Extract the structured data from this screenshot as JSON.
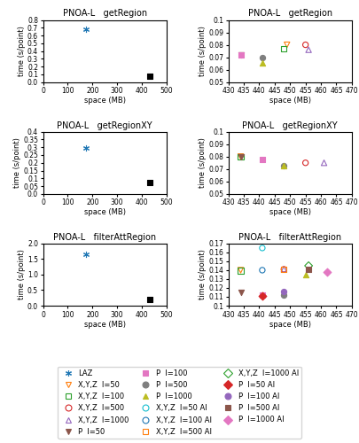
{
  "chart_data": [
    {
      "type": "scatter",
      "title": "PNOA-L   getRegion",
      "x_label": "space (MB)",
      "y_label": "time (s/point)",
      "xlim": [
        0,
        500
      ],
      "ylim": [
        0,
        0.8
      ],
      "xticks": [
        0,
        100,
        200,
        300,
        400,
        500
      ],
      "yticks": [
        0.0,
        0.1,
        0.2,
        0.3,
        0.4,
        0.5,
        0.6,
        0.7,
        0.8
      ],
      "series": [
        {
          "name": "LAZ",
          "marker": "asterisk",
          "x": [
            175
          ],
          "values": [
            0.68
          ]
        },
        {
          "color": "black",
          "marker": "square_filled",
          "x": [
            432
          ],
          "values": [
            0.073
          ]
        }
      ]
    },
    {
      "type": "scatter",
      "title": "PNOA-L   getRegion",
      "x_label": "space (MB)",
      "y_label": "time (s/point)",
      "xlim": [
        430,
        470
      ],
      "ylim": [
        0.05,
        0.1
      ],
      "xticks": [
        430,
        435,
        440,
        445,
        450,
        455,
        460,
        465,
        470
      ],
      "yticks": [
        0.05,
        0.06,
        0.07,
        0.08,
        0.09,
        0.1
      ],
      "series": [
        {
          "name": "X,Y,Z  l=50",
          "marker": "triangle_down_open",
          "x": [
            449
          ],
          "values": [
            0.08
          ]
        },
        {
          "name": "X,Y,Z  l=100",
          "marker": "square_open",
          "x": [
            448
          ],
          "values": [
            0.077
          ]
        },
        {
          "name": "X,Y,Z  l=500",
          "marker": "circle_open",
          "x": [
            455
          ],
          "values": [
            0.08
          ]
        },
        {
          "name": "X,Y,Z  l=1000",
          "marker": "triangle_up_open",
          "x": [
            456
          ],
          "values": [
            0.076
          ]
        },
        {
          "name": "P  l=50",
          "marker": "triangle_down_filled",
          "x": [
            434
          ],
          "values": [
            0.072
          ]
        },
        {
          "name": "P  l=100",
          "marker": "square_filled",
          "x": [
            434
          ],
          "values": [
            0.0715
          ]
        },
        {
          "name": "P  l=500",
          "marker": "circle_filled",
          "x": [
            441
          ],
          "values": [
            0.07
          ]
        },
        {
          "name": "P  l=1000",
          "marker": "triangle_up_filled",
          "x": [
            441
          ],
          "values": [
            0.0655
          ]
        }
      ]
    },
    {
      "type": "scatter",
      "title": "PNOA-L   getRegionXY",
      "x_label": "space (MB)",
      "y_label": "time (s/point)",
      "xlim": [
        0,
        500
      ],
      "ylim": [
        0,
        0.4
      ],
      "xticks": [
        0,
        100,
        200,
        300,
        400,
        500
      ],
      "yticks": [
        0.0,
        0.05,
        0.1,
        0.15,
        0.2,
        0.25,
        0.3,
        0.35,
        0.4
      ],
      "series": [
        {
          "name": "LAZ",
          "marker": "asterisk",
          "x": [
            175
          ],
          "values": [
            0.295
          ]
        },
        {
          "color": "black",
          "marker": "square_filled",
          "x": [
            432
          ],
          "values": [
            0.075
          ]
        }
      ]
    },
    {
      "type": "scatter",
      "title": "PNOA-L   getRegionXY",
      "x_label": "space (MB)",
      "y_label": "time (s/point)",
      "xlim": [
        430,
        470
      ],
      "ylim": [
        0.05,
        0.1
      ],
      "xticks": [
        430,
        435,
        440,
        445,
        450,
        455,
        460,
        465,
        470
      ],
      "yticks": [
        0.05,
        0.06,
        0.07,
        0.08,
        0.09,
        0.1
      ],
      "series": [
        {
          "name": "X,Y,Z  l=50",
          "marker": "triangle_down_open",
          "x": [
            434
          ],
          "values": [
            0.08
          ]
        },
        {
          "name": "X,Y,Z  l=100",
          "marker": "square_open",
          "x": [
            434
          ],
          "values": [
            0.08
          ]
        },
        {
          "name": "X,Y,Z  l=500",
          "marker": "circle_open",
          "x": [
            455
          ],
          "values": [
            0.075
          ]
        },
        {
          "name": "X,Y,Z  l=1000",
          "marker": "triangle_up_open",
          "x": [
            461
          ],
          "values": [
            0.075
          ]
        },
        {
          "name": "P  l=50",
          "marker": "triangle_down_filled",
          "x": [
            434
          ],
          "values": [
            0.08
          ]
        },
        {
          "name": "P  l=100",
          "marker": "square_filled",
          "x": [
            441
          ],
          "values": [
            0.078
          ]
        },
        {
          "name": "P  l=500",
          "marker": "circle_filled",
          "x": [
            448
          ],
          "values": [
            0.073
          ]
        },
        {
          "name": "P  l=1000",
          "marker": "triangle_up_filled",
          "x": [
            448
          ],
          "values": [
            0.073
          ]
        }
      ]
    },
    {
      "type": "scatter",
      "title": "PNOA-L   filterAttRegion",
      "x_label": "space (MB)",
      "y_label": "time (s/point)",
      "xlim": [
        0,
        500
      ],
      "ylim": [
        0,
        2
      ],
      "xticks": [
        0,
        100,
        200,
        300,
        400,
        500
      ],
      "yticks": [
        0.0,
        0.5,
        1.0,
        1.5,
        2.0
      ],
      "series": [
        {
          "name": "LAZ",
          "marker": "asterisk",
          "x": [
            175
          ],
          "values": [
            1.65
          ]
        },
        {
          "color": "black",
          "marker": "square_filled",
          "x": [
            432
          ],
          "values": [
            0.2
          ]
        }
      ]
    },
    {
      "type": "scatter",
      "title": "PNOA-L   filterAttRegion",
      "x_label": "space (MB)",
      "y_label": "time (s/point)",
      "xlim": [
        430,
        470
      ],
      "ylim": [
        0.1,
        0.17
      ],
      "xticks": [
        430,
        435,
        440,
        445,
        450,
        455,
        460,
        465,
        470
      ],
      "yticks": [
        0.1,
        0.11,
        0.12,
        0.13,
        0.14,
        0.15,
        0.16,
        0.17
      ],
      "legend": "lower center",
      "series": [
        {
          "name": "X,Y,Z  l=50",
          "marker": "triangle_down_open",
          "x": [
            434
          ],
          "values": [
            0.14
          ]
        },
        {
          "name": "X,Y,Z  l=100",
          "marker": "square_open",
          "x": [
            434
          ],
          "values": [
            0.1395
          ]
        },
        {
          "name": "X,Y,Z  l=500",
          "marker": "circle_open",
          "x": [
            448
          ],
          "values": [
            0.141
          ]
        },
        {
          "name": "X,Y,Z  l=1000",
          "marker": "triangle_up_open",
          "x": [
            448
          ],
          "values": [
            0.141
          ]
        },
        {
          "name": "P  l=50",
          "marker": "triangle_down_filled",
          "x": [
            434
          ],
          "values": [
            0.115
          ]
        },
        {
          "name": "P  l=100",
          "marker": "square_filled",
          "x": [
            441
          ],
          "values": [
            0.112
          ]
        },
        {
          "name": "P  l=500",
          "marker": "circle_filled",
          "x": [
            448
          ],
          "values": [
            0.112
          ]
        },
        {
          "name": "P  l=1000",
          "marker": "triangle_up_filled",
          "x": [
            455
          ],
          "values": [
            0.135
          ]
        },
        {
          "name": "X,Y,Z  l=50 AI",
          "marker": "circle_open",
          "x": [
            441
          ],
          "values": [
            0.165
          ]
        },
        {
          "name": "X,Y,Z  l=100 AI",
          "marker": "circle_open",
          "x": [
            441
          ],
          "values": [
            0.14
          ]
        },
        {
          "name": "X,Y,Z  l=500 AI",
          "marker": "square_open",
          "x": [
            448
          ],
          "values": [
            0.141
          ]
        },
        {
          "name": "X,Y,Z  l=1000 AI",
          "marker": "diamond_open",
          "x": [
            456
          ],
          "values": [
            0.145
          ]
        },
        {
          "name": "P  l=50 AI",
          "marker": "diamond_filled",
          "x": [
            441
          ],
          "values": [
            0.111
          ]
        },
        {
          "name": "P  l=100 AI",
          "marker": "circle_filled",
          "x": [
            448
          ],
          "values": [
            0.116
          ]
        },
        {
          "name": "P  l=500 AI",
          "marker": "square_filled",
          "x": [
            456
          ],
          "values": [
            0.141
          ]
        },
        {
          "name": "P  l=1000 AI",
          "marker": "diamond_filled",
          "x": [
            462
          ],
          "values": [
            0.138
          ]
        }
      ]
    }
  ]
}
